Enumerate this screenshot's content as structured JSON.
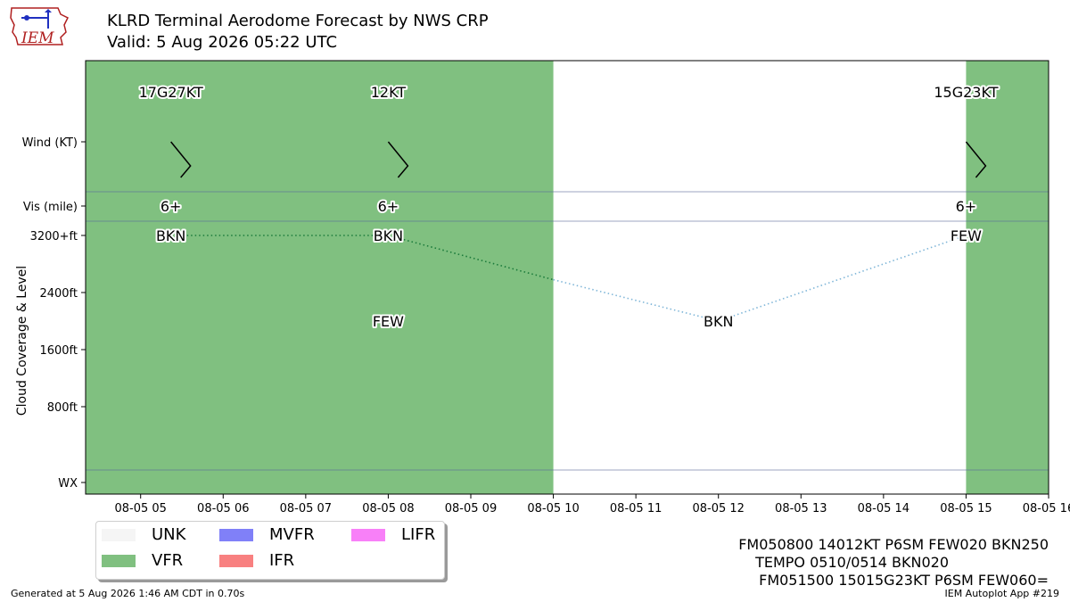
{
  "header": {
    "title": "KLRD Terminal Aerodome Forecast by NWS CRP",
    "subtitle": "Valid: 5 Aug 2026 05:22 UTC",
    "logo_text": "IEM"
  },
  "chart_data": {
    "type": "taf_timeline",
    "x_range": [
      "2026-08-05 04:20",
      "2026-08-05 16:00"
    ],
    "x_ticks": [
      "08-05 05",
      "08-05 06",
      "08-05 07",
      "08-05 08",
      "08-05 09",
      "08-05 10",
      "08-05 11",
      "08-05 12",
      "08-05 13",
      "08-05 14",
      "08-05 15",
      "08-05 16"
    ],
    "row_labels": {
      "wind": "Wind (KT)",
      "vis": "Vis (mile)",
      "cloud_axis": "Cloud Coverage & Level",
      "wx": "WX"
    },
    "cloud_ticks": [
      {
        "value": 800,
        "label": "800ft"
      },
      {
        "value": 1600,
        "label": "1600ft"
      },
      {
        "value": 2400,
        "label": "2400ft"
      },
      {
        "value": 3200,
        "label": "3200+ft"
      }
    ],
    "cloud_ylim": [
      -800,
      3200
    ],
    "category_spans": [
      {
        "start": "2026-08-05 04:20",
        "end": "2026-08-05 10:00",
        "category": "VFR"
      },
      {
        "start": "2026-08-05 15:00",
        "end": "2026-08-05 16:00",
        "category": "VFR"
      }
    ],
    "forecasts": [
      {
        "time": "2026-08-05 05:22",
        "wind_label": "17G27KT",
        "wind_dir": 140,
        "vis": "6+",
        "clouds": [
          {
            "cover": "BKN",
            "level": 3200
          }
        ]
      },
      {
        "time": "2026-08-05 08:00",
        "wind_label": "12KT",
        "wind_dir": 140,
        "vis": "6+",
        "clouds": [
          {
            "cover": "FEW",
            "level": 2000
          },
          {
            "cover": "BKN",
            "level": 3200
          }
        ]
      },
      {
        "time": "2026-08-05 12:00",
        "wind_label": "",
        "vis": "",
        "clouds": [
          {
            "cover": "BKN",
            "level": 2000
          }
        ]
      },
      {
        "time": "2026-08-05 15:00",
        "wind_label": "15G23KT",
        "wind_dir": 150,
        "vis": "6+",
        "clouds": [
          {
            "cover": "FEW",
            "level": 3200
          }
        ]
      }
    ],
    "cloud_lines": [
      {
        "from": [
          "2026-08-05 05:22",
          3200
        ],
        "to": [
          "2026-08-05 08:00",
          3200
        ],
        "color": "#1a7a3a"
      },
      {
        "from": [
          "2026-08-05 08:00",
          3200
        ],
        "to": [
          "2026-08-05 10:00",
          2580
        ],
        "color": "#1a7a3a"
      },
      {
        "from": [
          "2026-08-05 10:00",
          2580
        ],
        "to": [
          "2026-08-05 12:00",
          2000
        ],
        "color": "#7fb6d8"
      },
      {
        "from": [
          "2026-08-05 12:00",
          2000
        ],
        "to": [
          "2026-08-05 15:00",
          3200
        ],
        "color": "#7fb6d8"
      }
    ]
  },
  "legend": [
    {
      "label": "UNK",
      "color": "#f5f5f5"
    },
    {
      "label": "VFR",
      "color": "#80c080"
    },
    {
      "label": "MVFR",
      "color": "#8080f8"
    },
    {
      "label": "IFR",
      "color": "#f88080"
    },
    {
      "label": "LIFR",
      "color": "#f880f8"
    }
  ],
  "taf_text": {
    "line1": "FM050800 14012KT P6SM FEW020 BKN250",
    "line2": "TEMPO 0510/0514 BKN020",
    "line3": "FM051500 15015G23KT P6SM FEW060="
  },
  "footer": {
    "generated": "Generated at 5 Aug 2026 1:46 AM CDT in 0.70s",
    "app": "IEM Autoplot App #219"
  }
}
